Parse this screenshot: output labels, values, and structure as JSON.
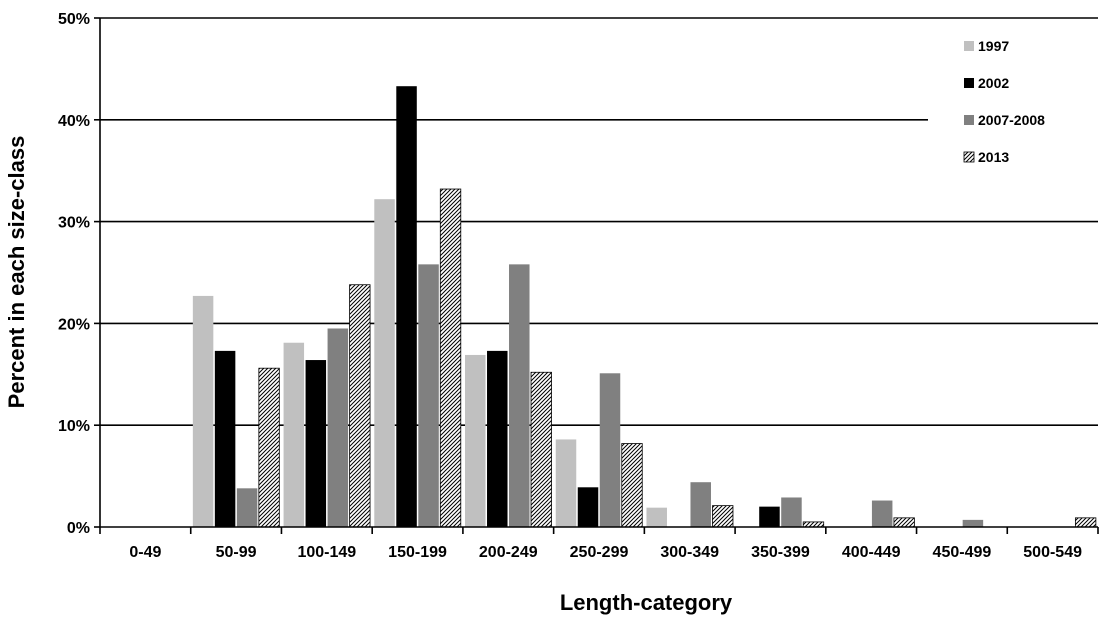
{
  "chart_data": {
    "type": "bar",
    "title": "",
    "xlabel": "Length-category",
    "ylabel": "Percent in each size-class",
    "ylim": [
      0,
      50
    ],
    "y_ticks": [
      "0%",
      "10%",
      "20%",
      "30%",
      "40%",
      "50%"
    ],
    "grid": "horizontal",
    "legend_position": "top-right",
    "categories": [
      "0-49",
      "50-99",
      "100-149",
      "150-199",
      "200-249",
      "250-299",
      "300-349",
      "350-399",
      "400-449",
      "450-499",
      "500-549"
    ],
    "series": [
      {
        "name": "1997",
        "color": "#c0c0c0",
        "pattern": "solid",
        "values": [
          0,
          22.7,
          18.1,
          32.2,
          16.9,
          8.6,
          1.9,
          0,
          0,
          0,
          0
        ]
      },
      {
        "name": "2002",
        "color": "#000000",
        "pattern": "solid",
        "values": [
          0,
          17.3,
          16.4,
          43.3,
          17.3,
          3.9,
          0,
          2.0,
          0,
          0,
          0
        ]
      },
      {
        "name": "2007-2008",
        "color": "#808080",
        "pattern": "solid",
        "values": [
          0,
          3.8,
          19.5,
          25.8,
          25.8,
          15.1,
          4.4,
          2.9,
          2.6,
          0.7,
          0
        ]
      },
      {
        "name": "2013",
        "color": "#ffffff",
        "pattern": "hatch",
        "values": [
          0,
          15.6,
          23.8,
          33.2,
          15.2,
          8.2,
          2.1,
          0.5,
          0.9,
          0,
          0.9
        ]
      }
    ]
  }
}
